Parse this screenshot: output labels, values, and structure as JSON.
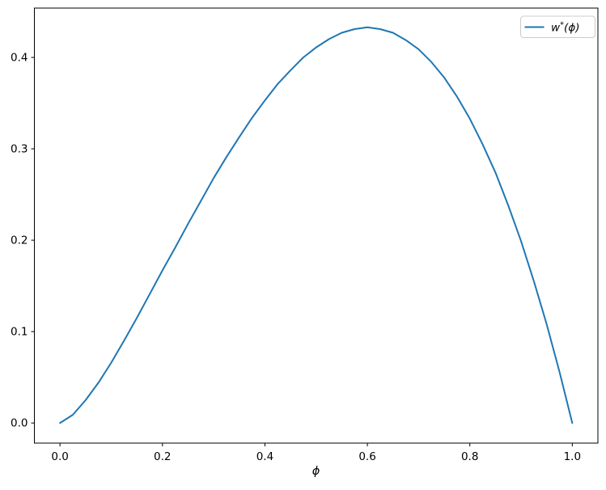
{
  "figure": {
    "background": "#ffffff",
    "spine_color": "#000000",
    "text_color": "#000000"
  },
  "legend": {
    "label": "w*(ϕ)",
    "label_var": "w",
    "label_sup": "*",
    "label_arg": "(ϕ)",
    "line_color": "#1f77b4",
    "border_color": "#cccccc",
    "background": "#ffffff"
  },
  "chart_data": {
    "type": "line",
    "title": "",
    "xlabel": "ϕ",
    "ylabel": "",
    "grid": false,
    "legend_position": "upper right",
    "xlim": [
      -0.05,
      1.05
    ],
    "ylim": [
      -0.022,
      0.454
    ],
    "xticks": [
      0.0,
      0.2,
      0.4,
      0.6,
      0.8,
      1.0
    ],
    "yticks": [
      0.0,
      0.1,
      0.2,
      0.3,
      0.4
    ],
    "series": [
      {
        "name": "w*(ϕ)",
        "color": "#1f77b4",
        "x": [
          0,
          0.025,
          0.05,
          0.075,
          0.1,
          0.125,
          0.15,
          0.175,
          0.2,
          0.225,
          0.25,
          0.275,
          0.3,
          0.325,
          0.35,
          0.375,
          0.4,
          0.425,
          0.45,
          0.475,
          0.5,
          0.525,
          0.55,
          0.575,
          0.6,
          0.625,
          0.65,
          0.675,
          0.7,
          0.725,
          0.75,
          0.775,
          0.8,
          0.825,
          0.85,
          0.875,
          0.9,
          0.925,
          0.95,
          0.975,
          1.0
        ],
        "y": [
          0,
          0.009,
          0.025,
          0.044,
          0.066,
          0.09,
          0.115,
          0.141,
          0.167,
          0.192,
          0.218,
          0.243,
          0.268,
          0.291,
          0.313,
          0.334,
          0.353,
          0.371,
          0.386,
          0.4,
          0.411,
          0.42,
          0.427,
          0.431,
          0.433,
          0.431,
          0.427,
          0.419,
          0.409,
          0.395,
          0.378,
          0.357,
          0.333,
          0.305,
          0.274,
          0.238,
          0.199,
          0.155,
          0.108,
          0.056,
          0
        ]
      }
    ]
  }
}
